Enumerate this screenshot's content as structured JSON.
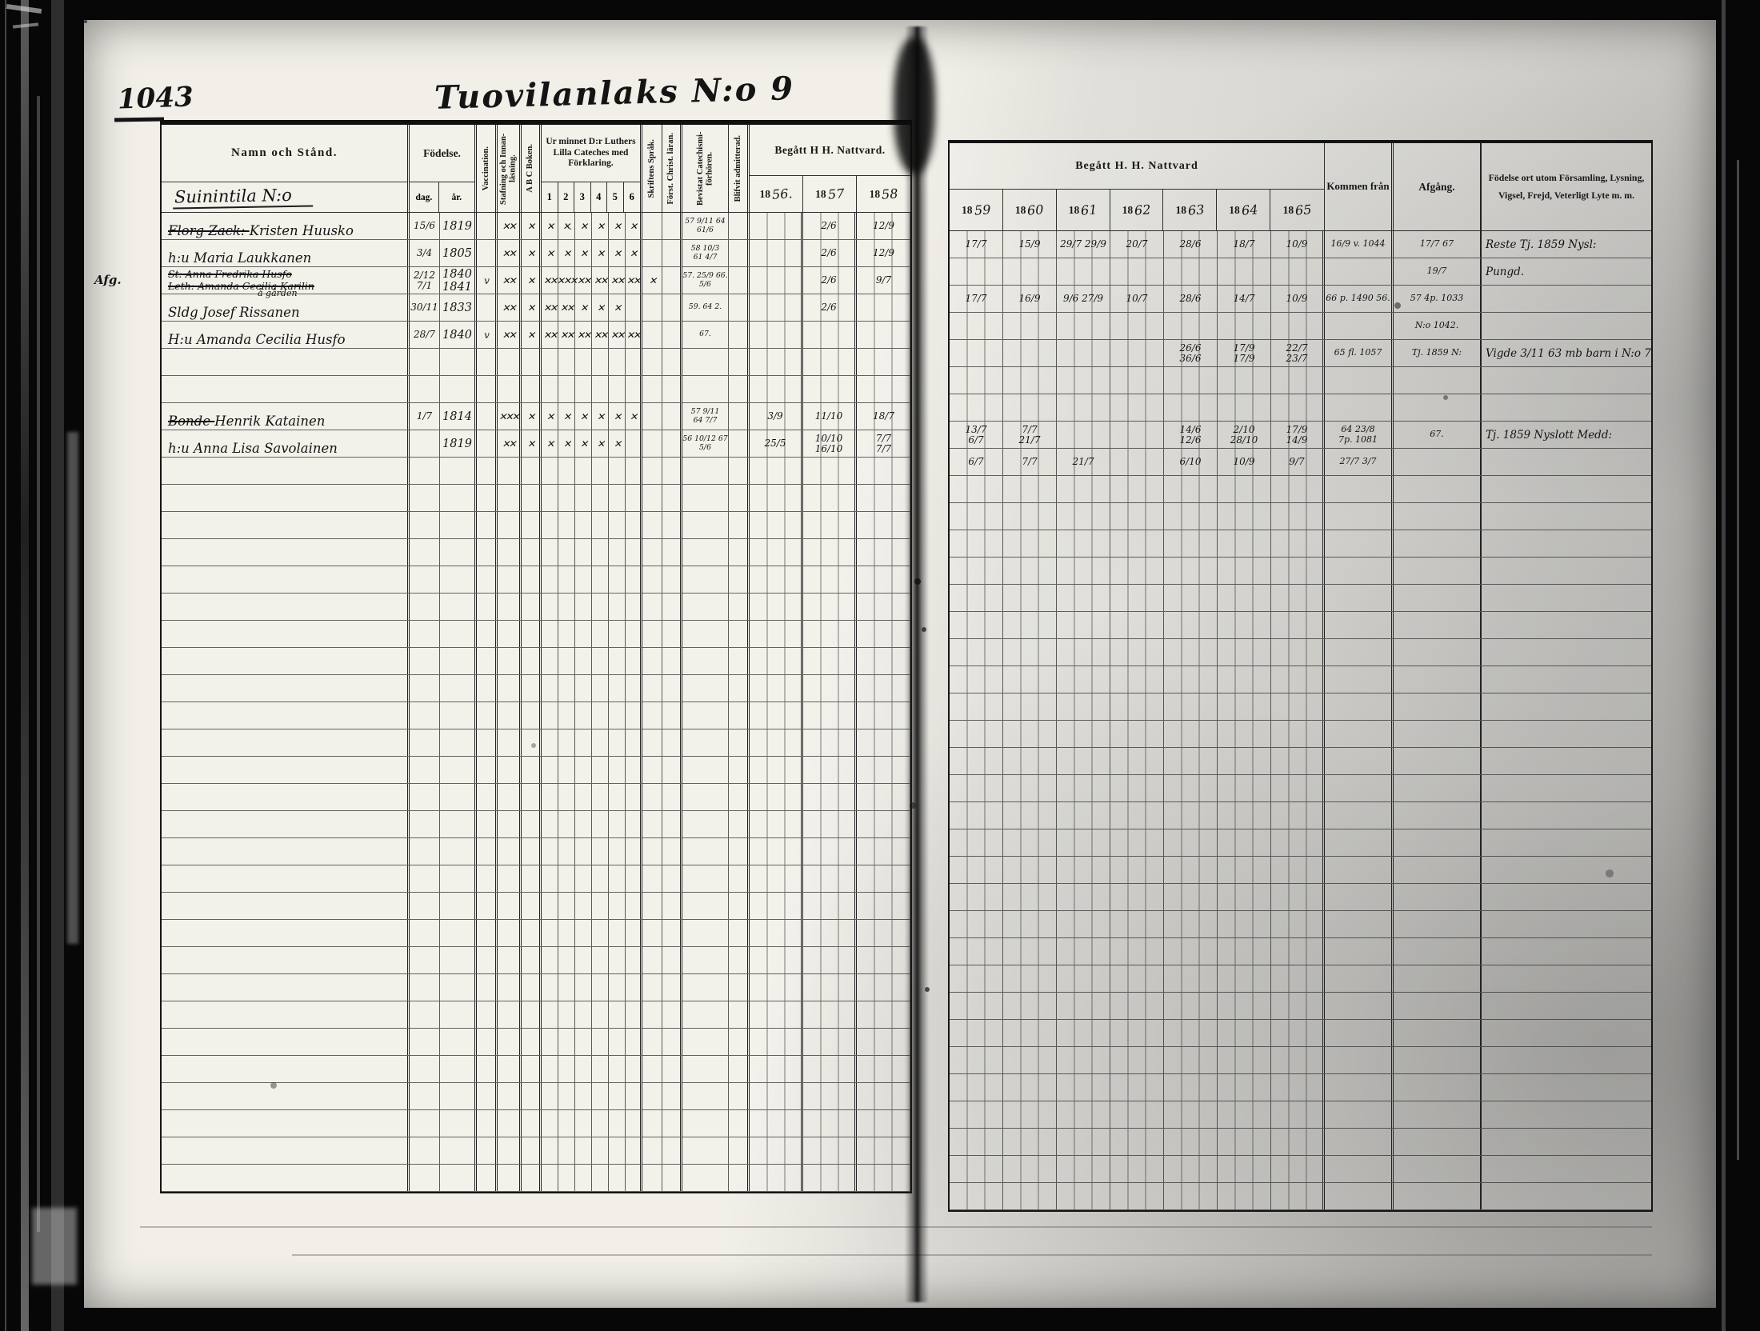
{
  "colors": {
    "paper": "#f1efe8",
    "ink": "#141414",
    "grid": "#2f2f2f",
    "film": "#070707"
  },
  "page": {
    "page_number": "1043",
    "title": "Tuovilanlaks N:o 9",
    "left_table": {
      "headers": {
        "name": "Namn och Stånd.",
        "farm_line": "Suinintila N:o",
        "birth": "Födelse.",
        "birth_day": "dag.",
        "birth_year": "år.",
        "vaccination": "Vaccination.",
        "spelling": "Stafning och Innan­läsning.",
        "abc": "A B C Boken.",
        "catechism": "Ur minnet D:r Luthers Lilla Cateches med Förklaring.",
        "catechism_cols": [
          "1",
          "2",
          "3",
          "4",
          "5",
          "6"
        ],
        "scripture": "Skriftens Språk.",
        "christian": "Först. Christ. läran.",
        "attended": "Bevistat Catechismi­förhören.",
        "admitted": "Blifvit admitterad.",
        "communion": "Begått H  H. Nattvard.",
        "year_prefix": "18",
        "years": [
          "56.",
          "57",
          "58"
        ]
      },
      "row_count": 36,
      "entries": {
        "0": {
          "n1s": "Florg Zack:",
          "n1": "Kristen Huusko",
          "d": "15/6",
          "a": "1819",
          "st": "✕✕",
          "ab": "✕",
          "c": [
            "✕",
            "✕.",
            "✕",
            "✕",
            "✕",
            "✕"
          ],
          "be": "57 9/11 64\n61/6",
          "y": [
            "",
            "2/6",
            "12/9"
          ]
        },
        "1": {
          "n1": "h:u Maria Laukkanen",
          "d": "3/4",
          "a": "1805",
          "st": "✕✕",
          "ab": "✕",
          "c": [
            "✕",
            "✕",
            "✕",
            "✕",
            "✕",
            "✕"
          ],
          "be": "58 10/3\n61 4/7",
          "y": [
            "",
            "2/6",
            "12/9"
          ]
        },
        "2": {
          "m": "Afg.",
          "n1s": "St: Anna Fredrika Husfo",
          "n2s": "Leth: Amanda Cecilia Karilin",
          "d": "2/12\n7/1",
          "a": "1840\n1841",
          "v": "v",
          "st": "✕✕",
          "ab": "✕",
          "c": [
            "✕✕",
            "✕✕✕",
            "✕✕",
            "✕✕",
            "✕✕",
            "✕✕"
          ],
          "sk": "✕",
          "be": "57. 25/9 66.\n5/6",
          "y": [
            "",
            "2/6",
            "9/7"
          ]
        },
        "3": {
          "na": "å gården",
          "n1": "Sldg Josef Rissanen",
          "d": "30/11",
          "a": "1833",
          "st": "✕✕",
          "ab": "✕",
          "c": [
            "✕✕",
            "✕✕",
            "✕",
            "✕",
            "✕",
            ""
          ],
          "be": "59. 64 2.",
          "y": [
            "",
            "2/6",
            ""
          ]
        },
        "4": {
          "n1": "H:u Amanda Cecilia Husfo",
          "d": "28/7",
          "a": "1840",
          "v": "v",
          "st": "✕✕",
          "ab": "✕",
          "c": [
            "✕✕",
            "✕✕",
            "✕✕",
            "✕✕",
            "✕✕",
            "✕✕"
          ],
          "be": "67.",
          "y": [
            "",
            "",
            ""
          ]
        },
        "7": {
          "n1s": "Bonde",
          "n1": "Henrik Katainen",
          "d": "1/7",
          "a": "1814",
          "st": "✕✕✕",
          "ab": "✕",
          "c": [
            "✕",
            "✕",
            "✕",
            "✕",
            "✕",
            "✕"
          ],
          "be": "57 9/11\n64 7/7",
          "y": [
            "3/9",
            "11/10",
            "18/7"
          ]
        },
        "8": {
          "n1": "h:u Anna Lisa Savolainen",
          "d": "",
          "a": "1819",
          "st": "✕✕",
          "ab": "✕",
          "c": [
            "✕",
            "✕",
            "✕",
            "✕",
            "✕",
            ""
          ],
          "be": "56 10/12 67\n5/6",
          "y": [
            "25/5",
            "10/10\n16/10",
            "7/7\n7/7"
          ]
        }
      }
    },
    "right_table": {
      "headers": {
        "communion": "Begått H. H. Nattvard",
        "year_prefix": "18",
        "years": [
          "59",
          "60",
          "61",
          "62",
          "63",
          "64",
          "65"
        ],
        "kommen": "Kommen från",
        "afgang": "Afgång.",
        "remarks": "Födelse ort utom Församling, Lysning, Vigsel, Frejd, Veterligt Lyte m. m."
      },
      "row_count": 36,
      "entries": {
        "0": {
          "y": [
            "17/7",
            "15/9",
            "29/7 29/9",
            "20/7",
            "28/6",
            "18/7",
            "10/9"
          ],
          "k": "16/9 v. 1044",
          "af": "17/7 67",
          "re": "Reste Tj. 1859 Nysl:"
        },
        "1": {
          "y": [
            "",
            "",
            "",
            "",
            "",
            "",
            ""
          ],
          "k": "",
          "af": "19/7",
          "re": "Pungd."
        },
        "2": {
          "y": [
            "17/7",
            "16/9",
            "9/6 27/9",
            "10/7",
            "28/6",
            "14/7",
            "10/9"
          ],
          "k": "66 p. 1490 56.",
          "af": "57 4p. 1033",
          "re": ""
        },
        "3": {
          "y": [
            "",
            "",
            "",
            "",
            "",
            "",
            ""
          ],
          "k": "",
          "af": "N:o 1042.",
          "re": ""
        },
        "4": {
          "y": [
            "",
            "",
            "",
            "",
            "26/6\n36/6",
            "17/9\n17/9",
            "22/7\n23/7"
          ],
          "k": "65 fl. 1057",
          "af": "Tj. 1859 N:",
          "re": "Vigde 3/11 63 mb barn i N:o 7"
        },
        "7": {
          "y": [
            "13/7\n6/7",
            "7/7\n21/7",
            "",
            "",
            "14/6\n12/6",
            "2/10\n28/10",
            "17/9\n14/9"
          ],
          "k": "64 23/8\n7p. 1081",
          "af": "67.",
          "re": "Tj. 1859 Nyslott Medd:"
        },
        "8": {
          "y": [
            "6/7",
            "7/7",
            "21/7",
            "",
            "6/10",
            "10/9",
            "9/7"
          ],
          "k": "27/7 3/7",
          "af": "",
          "re": ""
        }
      }
    }
  }
}
